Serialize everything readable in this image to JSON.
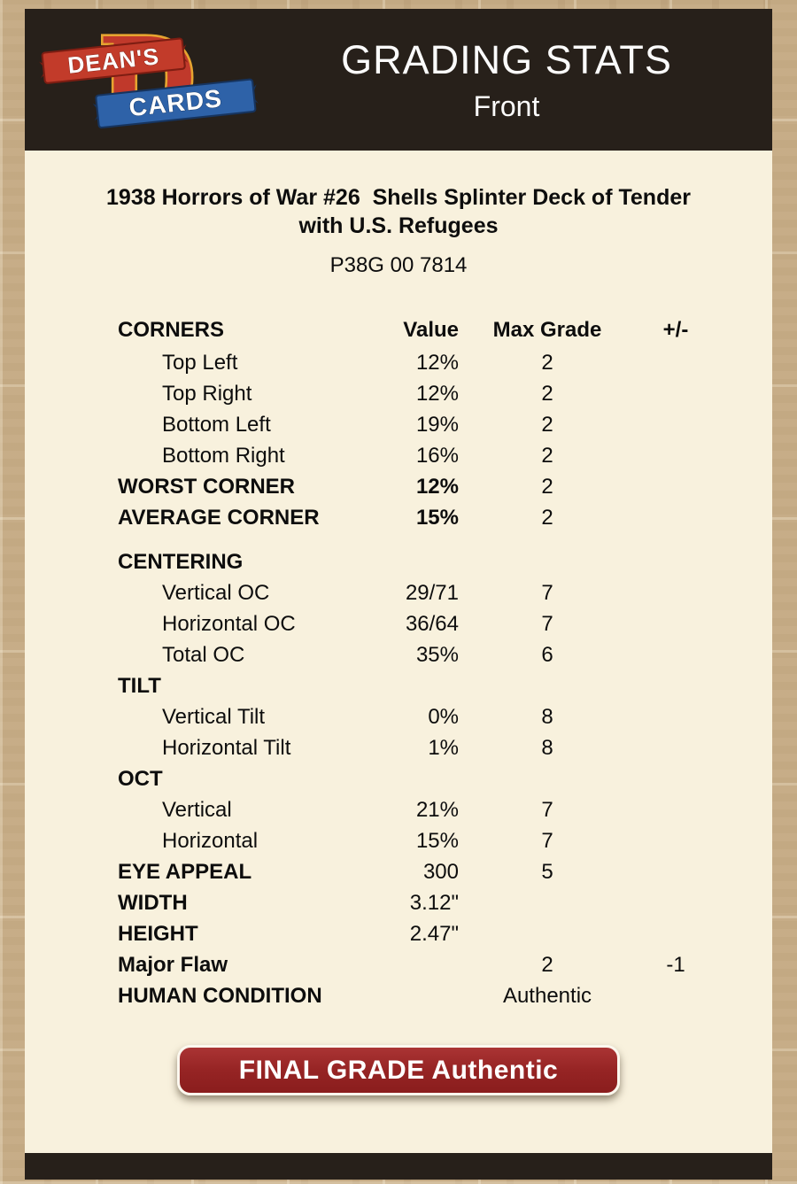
{
  "header": {
    "logo_monogram": "D",
    "logo_line1": "DEAN'S",
    "logo_line2": "CARDS",
    "title": "GRADING STATS",
    "subtitle": "Front"
  },
  "report": {
    "card_title": "1938 Horrors of War #26  Shells Splinter Deck of Tender with U.S. Refugees",
    "serial": "P38G 00 7814"
  },
  "table": {
    "header": {
      "label": "CORNERS",
      "value": "Value",
      "max": "Max Grade",
      "pm": "+/-"
    },
    "rows": [
      {
        "label": "Top Left",
        "value": "12%",
        "max": "2",
        "pm": "",
        "indent": true
      },
      {
        "label": "Top Right",
        "value": "12%",
        "max": "2",
        "pm": "",
        "indent": true
      },
      {
        "label": "Bottom Left",
        "value": "19%",
        "max": "2",
        "pm": "",
        "indent": true
      },
      {
        "label": "Bottom Right",
        "value": "16%",
        "max": "2",
        "pm": "",
        "indent": true
      },
      {
        "label": "WORST CORNER",
        "value": "12%",
        "max": "2",
        "pm": "",
        "bold": true,
        "bold_value": true
      },
      {
        "label": "AVERAGE CORNER",
        "value": "15%",
        "max": "2",
        "pm": "",
        "bold": true,
        "bold_value": true
      },
      {
        "label": "CENTERING",
        "value": "",
        "max": "",
        "pm": "",
        "bold": true,
        "gap": true
      },
      {
        "label": "Vertical OC",
        "value": "29/71",
        "max": "7",
        "pm": "",
        "indent": true
      },
      {
        "label": "Horizontal OC",
        "value": "36/64",
        "max": "7",
        "pm": "",
        "indent": true
      },
      {
        "label": "Total OC",
        "value": "35%",
        "max": "6",
        "pm": "",
        "indent": true
      },
      {
        "label": "TILT",
        "value": "",
        "max": "",
        "pm": "",
        "bold": true
      },
      {
        "label": "Vertical Tilt",
        "value": "0%",
        "max": "8",
        "pm": "",
        "indent": true
      },
      {
        "label": "Horizontal Tilt",
        "value": "1%",
        "max": "8",
        "pm": "",
        "indent": true
      },
      {
        "label": "OCT",
        "value": "",
        "max": "",
        "pm": "",
        "bold": true
      },
      {
        "label": "Vertical",
        "value": "21%",
        "max": "7",
        "pm": "",
        "indent": true
      },
      {
        "label": "Horizontal",
        "value": "15%",
        "max": "7",
        "pm": "",
        "indent": true
      },
      {
        "label": "EYE APPEAL",
        "value": "300",
        "max": "5",
        "pm": "",
        "bold": true
      },
      {
        "label": "WIDTH",
        "value": "3.12\"",
        "max": "",
        "pm": "",
        "bold": true
      },
      {
        "label": "HEIGHT",
        "value": "2.47\"",
        "max": "",
        "pm": "",
        "bold": true
      },
      {
        "label": "Major Flaw",
        "value": "",
        "max": "2",
        "pm": "-1",
        "bold": true
      },
      {
        "label": "HUMAN CONDITION",
        "value": "",
        "max": "Authentic",
        "pm": "",
        "bold": true
      }
    ]
  },
  "final_grade_label": "FINAL GRADE Authentic",
  "colors": {
    "header_bg": "#27201a",
    "panel_bg": "#f8f1dd",
    "page_tan": "#c7ad87",
    "button_red": "#962424",
    "logo_red": "#c0392b",
    "logo_blue": "#2e62a8",
    "logo_gold": "#e6a430"
  }
}
